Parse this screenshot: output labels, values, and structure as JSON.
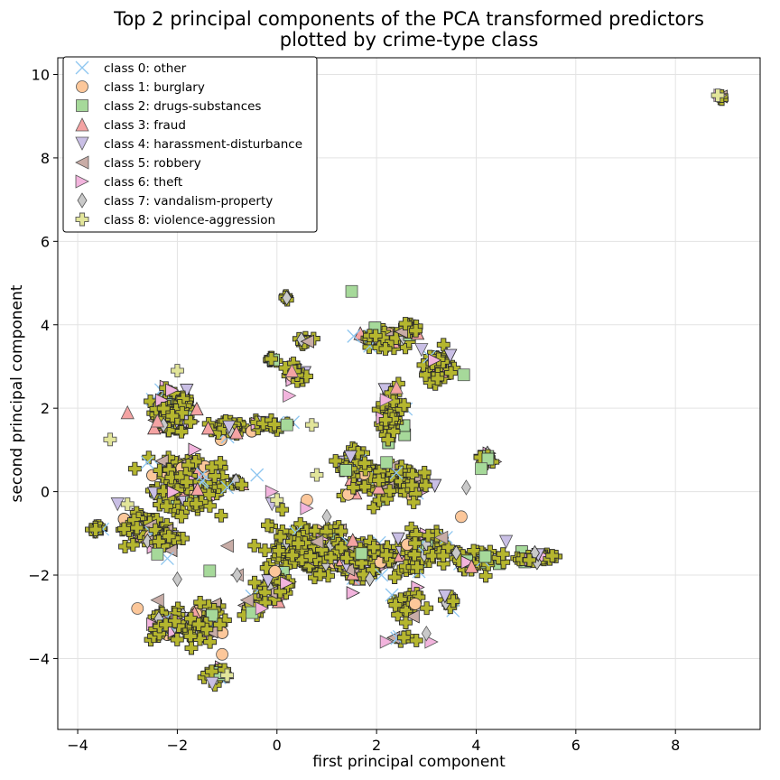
{
  "chart_data": {
    "type": "scatter",
    "title": [
      "Top 2 principal components of the PCA transformed predictors",
      "plotted by crime-type class"
    ],
    "xlabel": "first principal component",
    "ylabel": "second principal component",
    "xlim": [
      -4.4,
      9.7
    ],
    "ylim": [
      -5.7,
      10.4
    ],
    "xticks": [
      -4,
      -2,
      0,
      2,
      4,
      6,
      8
    ],
    "yticks": [
      -4,
      -2,
      0,
      2,
      4,
      6,
      8,
      10
    ],
    "grid": true,
    "legend_position": "top-left",
    "series": [
      {
        "name": "class 0: other",
        "marker": "x",
        "color": "#8ec6f0",
        "points": [
          [
            -0.4,
            0.4
          ],
          [
            -2.6,
            0.7
          ],
          [
            3.4,
            -1.1
          ],
          [
            -1.0,
            0.1
          ],
          [
            2.1,
            -2.0
          ],
          [
            -2.2,
            -1.6
          ]
        ]
      },
      {
        "name": "class 1: burglary",
        "marker": "circle",
        "color": "#fcc79a",
        "points": [
          [
            -1.1,
            -3.9
          ],
          [
            3.7,
            -0.6
          ],
          [
            0.6,
            -0.2
          ],
          [
            -2.8,
            -2.8
          ]
        ]
      },
      {
        "name": "class 2: drugs-substances",
        "marker": "square",
        "color": "#a6d99a",
        "points": [
          [
            1.5,
            4.8
          ],
          [
            3.75,
            2.8
          ],
          [
            -2.4,
            -1.5
          ],
          [
            -1.35,
            -1.9
          ],
          [
            4.1,
            0.55
          ],
          [
            0.2,
            1.6
          ],
          [
            -0.5,
            -2.9
          ],
          [
            2.2,
            0.7
          ]
        ]
      },
      {
        "name": "class 3: fraud",
        "marker": "triangle-up",
        "color": "#f4a3a3",
        "points": [
          [
            -3.0,
            1.9
          ],
          [
            -2.4,
            1.7
          ],
          [
            0.3,
            2.9
          ],
          [
            2.4,
            2.5
          ]
        ]
      },
      {
        "name": "class 4: harassment-disturbance",
        "marker": "triangle-down",
        "color": "#c9bfe5",
        "points": [
          [
            -3.2,
            -0.3
          ],
          [
            2.9,
            3.4
          ],
          [
            -1.3,
            -4.6
          ],
          [
            4.6,
            -1.2
          ],
          [
            -0.1,
            -0.3
          ]
        ]
      },
      {
        "name": "class 5: robbery",
        "marker": "triangle-left",
        "color": "#c8aca6",
        "points": [
          [
            -2.4,
            -2.6
          ],
          [
            -1.0,
            -1.3
          ],
          [
            -0.6,
            -2.6
          ],
          [
            3.3,
            -1.1
          ],
          [
            -0.8,
            -2.0
          ],
          [
            0.8,
            -1.2
          ]
        ]
      },
      {
        "name": "class 6: theft",
        "marker": "triangle-right",
        "color": "#f2b4dd",
        "points": [
          [
            0.25,
            2.3
          ],
          [
            -0.1,
            0.0
          ],
          [
            0.6,
            -0.4
          ],
          [
            3.1,
            -3.6
          ],
          [
            -0.3,
            -2.8
          ],
          [
            2.2,
            2.2
          ],
          [
            8.9,
            9.5
          ],
          [
            2.2,
            -3.6
          ]
        ]
      },
      {
        "name": "class 7: vandalism-property",
        "marker": "diamond",
        "color": "#c9c9c9",
        "points": [
          [
            3.8,
            0.1
          ],
          [
            -2.0,
            -2.1
          ],
          [
            -0.8,
            -2.0
          ],
          [
            1.0,
            -0.6
          ],
          [
            3.0,
            -3.4
          ]
        ]
      },
      {
        "name": "class 8: violence-aggression",
        "marker": "plus",
        "color": "#e2e59a",
        "points": [
          [
            -3.0,
            -0.3
          ],
          [
            0.7,
            1.6
          ],
          [
            -2.0,
            2.9
          ],
          [
            -3.35,
            1.25
          ],
          [
            8.85,
            9.5
          ],
          [
            0.0,
            -0.2
          ],
          [
            -1.0,
            -4.4
          ],
          [
            0.8,
            0.4
          ]
        ]
      }
    ],
    "clusters": [
      {
        "center": [
          -2.1,
          1.9
        ],
        "spread": [
          0.35,
          0.45
        ],
        "n": 120
      },
      {
        "center": [
          -1.8,
          0.2
        ],
        "spread": [
          0.55,
          0.55
        ],
        "n": 150
      },
      {
        "center": [
          -2.7,
          -0.9
        ],
        "spread": [
          0.35,
          0.3
        ],
        "n": 70
      },
      {
        "center": [
          -2.3,
          -1.1
        ],
        "spread": [
          0.3,
          0.25
        ],
        "n": 35
      },
      {
        "center": [
          -3.6,
          -0.9
        ],
        "spread": [
          0.12,
          0.1
        ],
        "n": 10
      },
      {
        "center": [
          -1.0,
          1.5
        ],
        "spread": [
          0.4,
          0.2
        ],
        "n": 35
      },
      {
        "center": [
          -0.1,
          1.6
        ],
        "spread": [
          0.3,
          0.1
        ],
        "n": 20
      },
      {
        "center": [
          -2.2,
          -3.2
        ],
        "spread": [
          0.35,
          0.3
        ],
        "n": 60
      },
      {
        "center": [
          -1.5,
          -3.1
        ],
        "spread": [
          0.35,
          0.35
        ],
        "n": 50
      },
      {
        "center": [
          -1.2,
          -4.4
        ],
        "spread": [
          0.25,
          0.15
        ],
        "n": 35
      },
      {
        "center": [
          0.7,
          -1.4
        ],
        "spread": [
          0.7,
          0.5
        ],
        "n": 180
      },
      {
        "center": [
          1.8,
          -1.6
        ],
        "spread": [
          0.6,
          0.4
        ],
        "n": 120
      },
      {
        "center": [
          0.0,
          -2.2
        ],
        "spread": [
          0.35,
          0.3
        ],
        "n": 40
      },
      {
        "center": [
          -0.4,
          -2.7
        ],
        "spread": [
          0.25,
          0.2
        ],
        "n": 20
      },
      {
        "center": [
          2.8,
          -1.4
        ],
        "spread": [
          0.45,
          0.35
        ],
        "n": 70
      },
      {
        "center": [
          3.9,
          -1.7
        ],
        "spread": [
          0.45,
          0.25
        ],
        "n": 50
      },
      {
        "center": [
          5.2,
          -1.6
        ],
        "spread": [
          0.4,
          0.15
        ],
        "n": 30
      },
      {
        "center": [
          2.1,
          0.2
        ],
        "spread": [
          0.55,
          0.35
        ],
        "n": 90
      },
      {
        "center": [
          1.5,
          0.7
        ],
        "spread": [
          0.3,
          0.3
        ],
        "n": 30
      },
      {
        "center": [
          2.8,
          0.2
        ],
        "spread": [
          0.3,
          0.25
        ],
        "n": 30
      },
      {
        "center": [
          2.3,
          1.9
        ],
        "spread": [
          0.25,
          0.5
        ],
        "n": 45
      },
      {
        "center": [
          2.1,
          3.7
        ],
        "spread": [
          0.4,
          0.25
        ],
        "n": 45
      },
      {
        "center": [
          3.2,
          3.0
        ],
        "spread": [
          0.3,
          0.4
        ],
        "n": 40
      },
      {
        "center": [
          2.7,
          3.9
        ],
        "spread": [
          0.25,
          0.2
        ],
        "n": 25
      },
      {
        "center": [
          0.6,
          3.65
        ],
        "spread": [
          0.15,
          0.1
        ],
        "n": 12
      },
      {
        "center": [
          0.4,
          2.8
        ],
        "spread": [
          0.25,
          0.2
        ],
        "n": 20
      },
      {
        "center": [
          -0.1,
          3.15
        ],
        "spread": [
          0.1,
          0.1
        ],
        "n": 8
      },
      {
        "center": [
          0.2,
          4.65
        ],
        "spread": [
          0.08,
          0.06
        ],
        "n": 6
      },
      {
        "center": [
          4.2,
          0.8
        ],
        "spread": [
          0.15,
          0.15
        ],
        "n": 12
      },
      {
        "center": [
          -0.8,
          0.2
        ],
        "spread": [
          0.12,
          0.1
        ],
        "n": 8
      },
      {
        "center": [
          2.6,
          -2.7
        ],
        "spread": [
          0.3,
          0.3
        ],
        "n": 25
      },
      {
        "center": [
          3.5,
          -2.7
        ],
        "spread": [
          0.15,
          0.2
        ],
        "n": 10
      },
      {
        "center": [
          2.6,
          -3.5
        ],
        "spread": [
          0.2,
          0.05
        ],
        "n": 8
      },
      {
        "center": [
          8.9,
          9.45
        ],
        "spread": [
          0.05,
          0.05
        ],
        "n": 6
      }
    ]
  },
  "colors": {
    "dense_fill": "#b5b62e",
    "dense_edge": "#2a2a2a",
    "grid": "#e3e3e3"
  }
}
